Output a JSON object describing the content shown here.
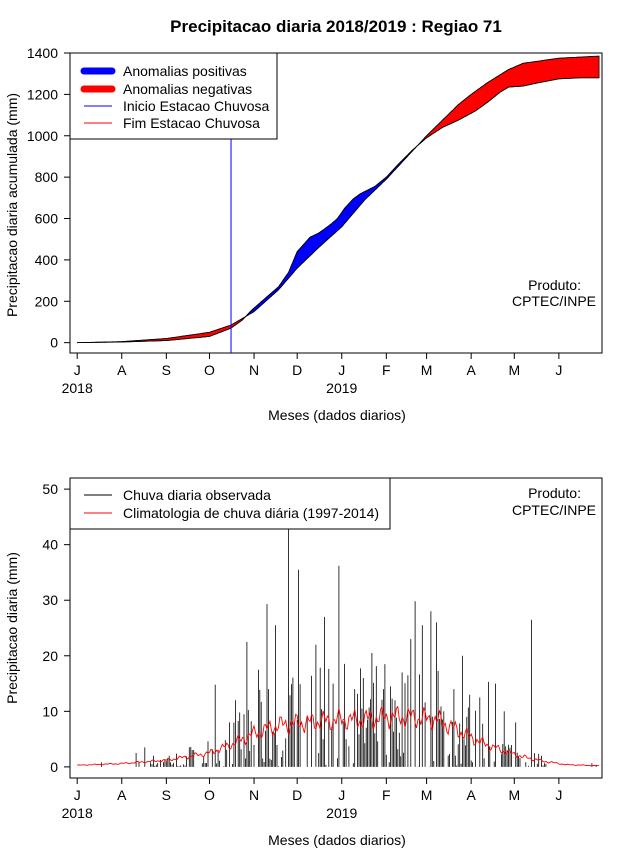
{
  "colors": {
    "positive": "#0000ff",
    "negative": "#ff0000",
    "onset": "#0000ff",
    "end": "#ff0000",
    "observed": "#000000",
    "climatology": "#ff0000"
  },
  "chart_data": [
    {
      "type": "area",
      "title": "Precipitacao diaria 2018/2019 : Regiao 71",
      "xlabel": "Meses (dados diarios)",
      "ylabel": "Precipitacao diaria acumulada (mm)",
      "ylim": [
        -50,
        1400
      ],
      "yticks": [
        0,
        200,
        400,
        600,
        800,
        1000,
        1200,
        1400
      ],
      "xlim": [
        -5,
        365
      ],
      "x_ticks": [
        {
          "day": 0,
          "label": "J"
        },
        {
          "day": 31,
          "label": "A"
        },
        {
          "day": 62,
          "label": "S"
        },
        {
          "day": 92,
          "label": "O"
        },
        {
          "day": 123,
          "label": "N"
        },
        {
          "day": 153,
          "label": "D"
        },
        {
          "day": 184,
          "label": "J"
        },
        {
          "day": 215,
          "label": "F"
        },
        {
          "day": 243,
          "label": "M"
        },
        {
          "day": 274,
          "label": "A"
        },
        {
          "day": 304,
          "label": "M"
        },
        {
          "day": 335,
          "label": "J"
        }
      ],
      "year_labels": [
        {
          "day": 0,
          "label": "2018"
        },
        {
          "day": 184,
          "label": "2019"
        }
      ],
      "legend": {
        "position": "top-left",
        "entries": [
          {
            "label": "Anomalias positivas",
            "color": "#0000ff",
            "style": "thick"
          },
          {
            "label": "Anomalias negativas",
            "color": "#ff0000",
            "style": "thick"
          },
          {
            "label": "Inicio Estacao Chuvosa",
            "color": "#0000ff",
            "style": "thin"
          },
          {
            "label": "Fim Estacao Chuvosa",
            "color": "#ff0000",
            "style": "thin"
          }
        ]
      },
      "onset_day": 107,
      "annotation": [
        "Produto:",
        "CPTEC/INPE"
      ],
      "observed_cumulative_anchors": [
        [
          0,
          0
        ],
        [
          31,
          3
        ],
        [
          62,
          10
        ],
        [
          92,
          30
        ],
        [
          107,
          70
        ],
        [
          115,
          110
        ],
        [
          121,
          155
        ],
        [
          130,
          210
        ],
        [
          140,
          270
        ],
        [
          147,
          340
        ],
        [
          153,
          440
        ],
        [
          162,
          510
        ],
        [
          168,
          530
        ],
        [
          176,
          570
        ],
        [
          181,
          600
        ],
        [
          186,
          650
        ],
        [
          192,
          695
        ],
        [
          197,
          720
        ],
        [
          207,
          755
        ],
        [
          215,
          800
        ],
        [
          223,
          860
        ],
        [
          233,
          930
        ],
        [
          243,
          990
        ],
        [
          254,
          1040
        ],
        [
          265,
          1075
        ],
        [
          277,
          1120
        ],
        [
          286,
          1165
        ],
        [
          294,
          1210
        ],
        [
          300,
          1235
        ],
        [
          310,
          1240
        ],
        [
          320,
          1255
        ],
        [
          335,
          1275
        ],
        [
          350,
          1280
        ],
        [
          363,
          1280
        ]
      ],
      "climatology_cumulative_anchors": [
        [
          0,
          0
        ],
        [
          31,
          5
        ],
        [
          62,
          20
        ],
        [
          92,
          50
        ],
        [
          107,
          85
        ],
        [
          123,
          150
        ],
        [
          140,
          255
        ],
        [
          153,
          360
        ],
        [
          168,
          460
        ],
        [
          184,
          560
        ],
        [
          200,
          690
        ],
        [
          215,
          790
        ],
        [
          243,
          1000
        ],
        [
          265,
          1150
        ],
        [
          274,
          1200
        ],
        [
          285,
          1255
        ],
        [
          300,
          1320
        ],
        [
          310,
          1350
        ],
        [
          335,
          1375
        ],
        [
          363,
          1385
        ]
      ]
    },
    {
      "type": "bar",
      "xlabel": "Meses (dados diarios)",
      "ylabel": "Precipitacao diaria (mm)",
      "ylim": [
        -2,
        52
      ],
      "yticks": [
        0,
        10,
        20,
        30,
        40,
        50
      ],
      "xlim": [
        -5,
        365
      ],
      "x_ticks": [
        {
          "day": 0,
          "label": "J"
        },
        {
          "day": 31,
          "label": "A"
        },
        {
          "day": 62,
          "label": "S"
        },
        {
          "day": 92,
          "label": "O"
        },
        {
          "day": 123,
          "label": "N"
        },
        {
          "day": 153,
          "label": "D"
        },
        {
          "day": 184,
          "label": "J"
        },
        {
          "day": 215,
          "label": "F"
        },
        {
          "day": 243,
          "label": "M"
        },
        {
          "day": 274,
          "label": "A"
        },
        {
          "day": 304,
          "label": "M"
        },
        {
          "day": 335,
          "label": "J"
        }
      ],
      "year_labels": [
        {
          "day": 0,
          "label": "2018"
        },
        {
          "day": 184,
          "label": "2019"
        }
      ],
      "legend": {
        "position": "top-left",
        "entries": [
          {
            "label": "Chuva diaria observada",
            "color": "#000000"
          },
          {
            "label": "Climatologia de chuva diária (1997-2014)",
            "color": "#ff0000"
          }
        ]
      },
      "annotation": [
        "Produto:",
        "CPTEC/INPE"
      ],
      "observed_peaks": [
        [
          41,
          2.5
        ],
        [
          47,
          3.5
        ],
        [
          64,
          2.0
        ],
        [
          80,
          3.0
        ],
        [
          96,
          14.8
        ],
        [
          106,
          8.0
        ],
        [
          110,
          12.0
        ],
        [
          118,
          22.5
        ],
        [
          126,
          17.5
        ],
        [
          132,
          29.3
        ],
        [
          138,
          25.5
        ],
        [
          147,
          44.0
        ],
        [
          151,
          8.0
        ],
        [
          154,
          35.5
        ],
        [
          160,
          9.0
        ],
        [
          166,
          22.0
        ],
        [
          172,
          27.0
        ],
        [
          178,
          15.0
        ],
        [
          182,
          36.2
        ],
        [
          187,
          5.0
        ],
        [
          193,
          14.0
        ],
        [
          199,
          16.0
        ],
        [
          205,
          20.5
        ],
        [
          213,
          14.0
        ],
        [
          221,
          12.0
        ],
        [
          226,
          17.0
        ],
        [
          232,
          23.0
        ],
        [
          235,
          29.8
        ],
        [
          240,
          25.5
        ],
        [
          246,
          28.0
        ],
        [
          250,
          26.0
        ],
        [
          255,
          10.0
        ],
        [
          262,
          14.0
        ],
        [
          268,
          20.0
        ],
        [
          273,
          13.0
        ],
        [
          280,
          12.5
        ],
        [
          286,
          15.3
        ],
        [
          291,
          15.0
        ],
        [
          297,
          10.0
        ],
        [
          305,
          8.0
        ],
        [
          316,
          26.5
        ],
        [
          323,
          2.0
        ]
      ],
      "climatology_anchors": [
        [
          0,
          0.3
        ],
        [
          31,
          0.6
        ],
        [
          62,
          1.2
        ],
        [
          92,
          2.5
        ],
        [
          107,
          4.0
        ],
        [
          123,
          6.0
        ],
        [
          140,
          7.5
        ],
        [
          160,
          8.0
        ],
        [
          184,
          8.5
        ],
        [
          200,
          8.5
        ],
        [
          215,
          9.0
        ],
        [
          230,
          9.0
        ],
        [
          250,
          8.5
        ],
        [
          265,
          6.5
        ],
        [
          280,
          4.5
        ],
        [
          295,
          3.0
        ],
        [
          310,
          1.8
        ],
        [
          325,
          1.0
        ],
        [
          340,
          0.4
        ],
        [
          363,
          0.2
        ]
      ]
    }
  ]
}
